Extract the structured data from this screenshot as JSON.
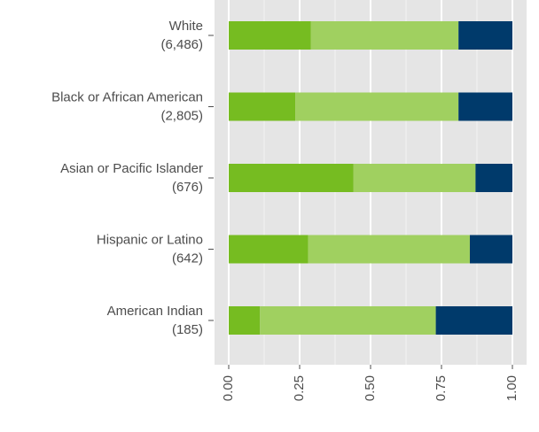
{
  "chart_data": {
    "type": "stacked-bar-horizontal",
    "categories": [
      "White",
      "Black or African American",
      "Asian or Pacific Islander",
      "Hispanic or Latino",
      "American Indian"
    ],
    "category_counts": [
      "(6,486)",
      "(2,805)",
      "(676)",
      "(642)",
      "(185)"
    ],
    "series": [
      {
        "color": "#76bc21",
        "values": [
          0.29,
          0.235,
          0.44,
          0.28,
          0.11
        ]
      },
      {
        "color": "#a0d060",
        "values": [
          0.52,
          0.575,
          0.43,
          0.57,
          0.62
        ]
      },
      {
        "color": "#003a6b",
        "values": [
          0.19,
          0.19,
          0.13,
          0.15,
          0.27
        ]
      }
    ],
    "xlim": [
      0,
      1
    ],
    "xticks": [
      {
        "value": 0,
        "label": "0.00"
      },
      0.25,
      {
        "value": 0.5,
        "label": "0.50"
      },
      0.75,
      {
        "value": 1,
        "label": "1.00"
      }
    ],
    "grid": true
  }
}
